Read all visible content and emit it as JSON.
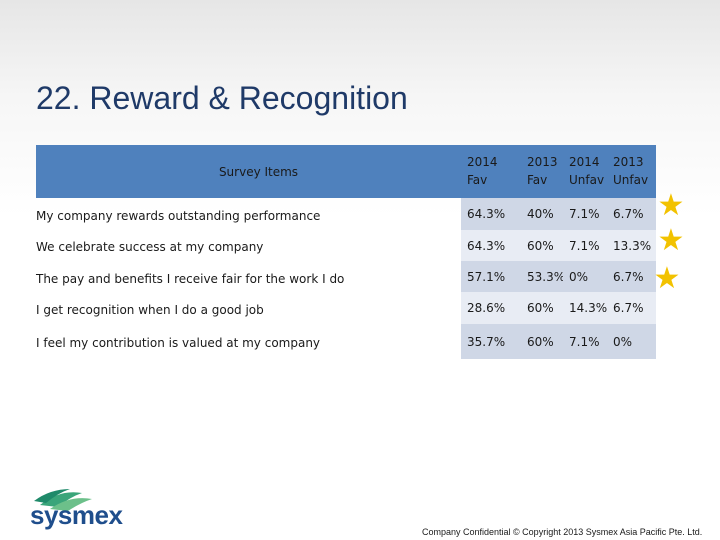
{
  "title": "22. Reward & Recognition",
  "table": {
    "items_header": "Survey Items",
    "year_headers": [
      "2014",
      "2013",
      "2014",
      "2013"
    ],
    "type_headers": [
      "Fav",
      "Fav",
      "Unfav",
      "Unfav"
    ],
    "rows": [
      {
        "item": "My company rewards outstanding performance",
        "values": [
          "64.3%",
          "40%",
          "7.1%",
          "6.7%"
        ]
      },
      {
        "item": "We celebrate success at my company",
        "values": [
          "64.3%",
          "60%",
          "7.1%",
          "13.3%"
        ]
      },
      {
        "item": "The pay and benefits I receive fair for the work I do",
        "values": [
          "57.1%",
          "53.3%",
          "0%",
          "6.7%"
        ]
      },
      {
        "item": "I get recognition when I do a good job",
        "values": [
          "28.6%",
          "60%",
          "14.3%",
          "6.7%"
        ]
      },
      {
        "item": "I feel my contribution is valued at my company",
        "values": [
          "35.7%",
          "60%",
          "7.1%",
          "0%"
        ]
      }
    ]
  },
  "stars": {
    "icon": "star-icon",
    "color": "#f2c200",
    "count": 3
  },
  "logo": {
    "text": "sysmex",
    "icon": "sysmex-logo-icon"
  },
  "footer": "Company Confidential © Copyright 2013 Sysmex Asia Pacific Pte. Ltd."
}
